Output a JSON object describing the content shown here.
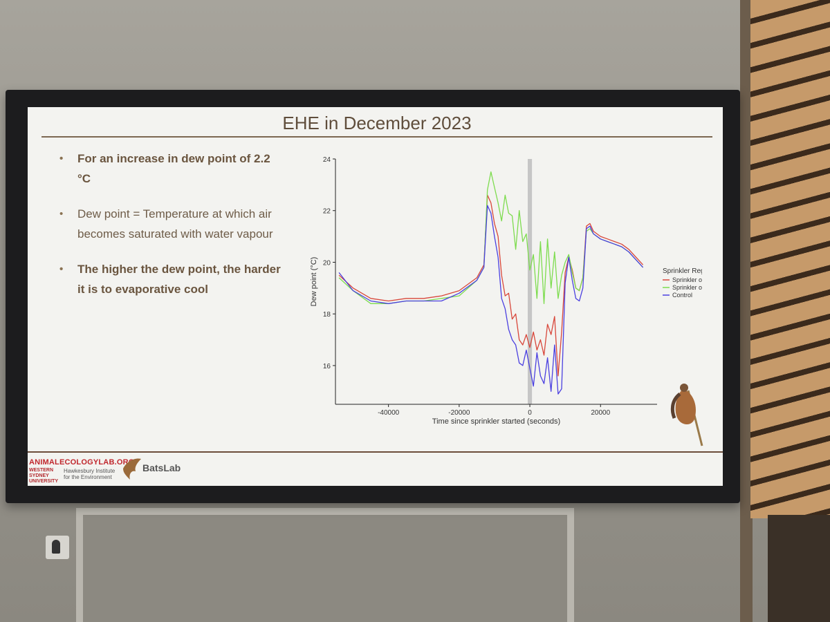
{
  "slide": {
    "title": "EHE in December 2023",
    "bullets": [
      {
        "text": "For an increase in dew point of 2.2 °C",
        "bold": true
      },
      {
        "text": "Dew point = Temperature at which air becomes saturated with water vapour",
        "bold": false
      },
      {
        "text": "The higher the dew point, the harder it is to evaporative cool",
        "bold": true
      }
    ],
    "bullet_symbol": "•",
    "footer": {
      "lab_url": "ANIMALECOLOGYLAB.ORG",
      "university": "WESTERN SYDNEY UNIVERSITY",
      "institute": "Hawkesbury Institute for the Environment",
      "batslab": "BatsLab"
    }
  },
  "chart_data": {
    "type": "line",
    "xlabel": "Time since sprinkler started (seconds)",
    "ylabel": "Dew point (°C)",
    "xlim": [
      -55000,
      36000
    ],
    "ylim": [
      14.5,
      24
    ],
    "x_ticks": [
      -40000,
      -20000,
      0,
      20000
    ],
    "y_ticks": [
      16,
      18,
      20,
      22,
      24
    ],
    "grid": false,
    "shaded_band": {
      "x_from": -600,
      "x_to": 600,
      "color": "#c6c6c6"
    },
    "legend": {
      "title": "Sprinkler Regime",
      "position": "right"
    },
    "series": [
      {
        "name": "Sprinkler off",
        "color": "#d8463a",
        "x": [
          -54000,
          -50000,
          -45000,
          -40000,
          -35000,
          -30000,
          -25000,
          -20000,
          -15000,
          -13000,
          -12000,
          -11000,
          -10000,
          -9000,
          -8000,
          -7000,
          -6000,
          -5000,
          -4000,
          -3000,
          -2000,
          -1000,
          0,
          1000,
          2000,
          3000,
          4000,
          5000,
          6000,
          7000,
          8000,
          9000,
          10000,
          11000,
          12000,
          13000,
          14000,
          15000,
          16000,
          17000,
          18000,
          20000,
          22000,
          24000,
          26000,
          28000,
          30000,
          32000
        ],
        "y": [
          19.5,
          19.0,
          18.6,
          18.5,
          18.6,
          18.6,
          18.7,
          18.9,
          19.4,
          19.9,
          22.6,
          22.3,
          21.5,
          21.0,
          19.5,
          18.7,
          18.8,
          17.8,
          18.0,
          17.0,
          16.8,
          17.2,
          16.7,
          17.3,
          16.6,
          17.0,
          16.4,
          17.6,
          17.2,
          17.9,
          15.6,
          17.3,
          19.6,
          20.2,
          19.7,
          19.0,
          18.9,
          19.4,
          21.4,
          21.5,
          21.2,
          21.0,
          20.9,
          20.8,
          20.7,
          20.5,
          20.2,
          19.9
        ]
      },
      {
        "name": "Sprinkler on",
        "color": "#7ddc4e",
        "x": [
          -54000,
          -50000,
          -45000,
          -40000,
          -35000,
          -30000,
          -25000,
          -20000,
          -15000,
          -13000,
          -12000,
          -11000,
          -10000,
          -9000,
          -8000,
          -7000,
          -6000,
          -5000,
          -4000,
          -3000,
          -2000,
          -1000,
          0,
          1000,
          2000,
          3000,
          4000,
          5000,
          6000,
          7000,
          8000,
          9000,
          10000,
          11000,
          12000,
          13000,
          14000,
          15000,
          16000,
          17000,
          18000,
          20000,
          22000,
          24000,
          26000,
          28000,
          30000,
          32000
        ],
        "y": [
          19.4,
          18.9,
          18.4,
          18.4,
          18.5,
          18.5,
          18.6,
          18.7,
          19.3,
          19.8,
          22.8,
          23.5,
          22.9,
          22.3,
          21.6,
          22.6,
          21.9,
          21.8,
          20.5,
          22.0,
          20.8,
          21.1,
          19.7,
          20.3,
          18.6,
          20.8,
          18.4,
          20.9,
          19.0,
          20.4,
          18.6,
          19.5,
          20.0,
          20.3,
          19.6,
          19.0,
          18.9,
          19.4,
          21.2,
          21.3,
          21.1,
          20.9,
          20.8,
          20.7,
          20.6,
          20.4,
          20.1,
          19.8
        ]
      },
      {
        "name": "Control",
        "color": "#4a3fe0",
        "x": [
          -54000,
          -50000,
          -45000,
          -40000,
          -35000,
          -30000,
          -25000,
          -20000,
          -15000,
          -13000,
          -12000,
          -11000,
          -10000,
          -9000,
          -8000,
          -7000,
          -6000,
          -5000,
          -4000,
          -3000,
          -2000,
          -1000,
          0,
          1000,
          2000,
          3000,
          4000,
          5000,
          6000,
          7000,
          8000,
          9000,
          10000,
          11000,
          12000,
          13000,
          14000,
          15000,
          16000,
          17000,
          18000,
          20000,
          22000,
          24000,
          26000,
          28000,
          30000,
          32000
        ],
        "y": [
          19.6,
          18.9,
          18.5,
          18.4,
          18.5,
          18.5,
          18.5,
          18.8,
          19.3,
          19.8,
          22.2,
          21.9,
          21.0,
          20.2,
          18.6,
          18.2,
          17.4,
          17.0,
          16.8,
          16.1,
          16.0,
          16.6,
          15.9,
          15.2,
          16.5,
          15.6,
          15.3,
          16.3,
          15.0,
          16.8,
          14.9,
          15.1,
          19.2,
          20.2,
          19.3,
          18.6,
          18.5,
          19.0,
          21.3,
          21.4,
          21.1,
          20.9,
          20.8,
          20.7,
          20.6,
          20.4,
          20.1,
          19.8
        ]
      }
    ]
  }
}
